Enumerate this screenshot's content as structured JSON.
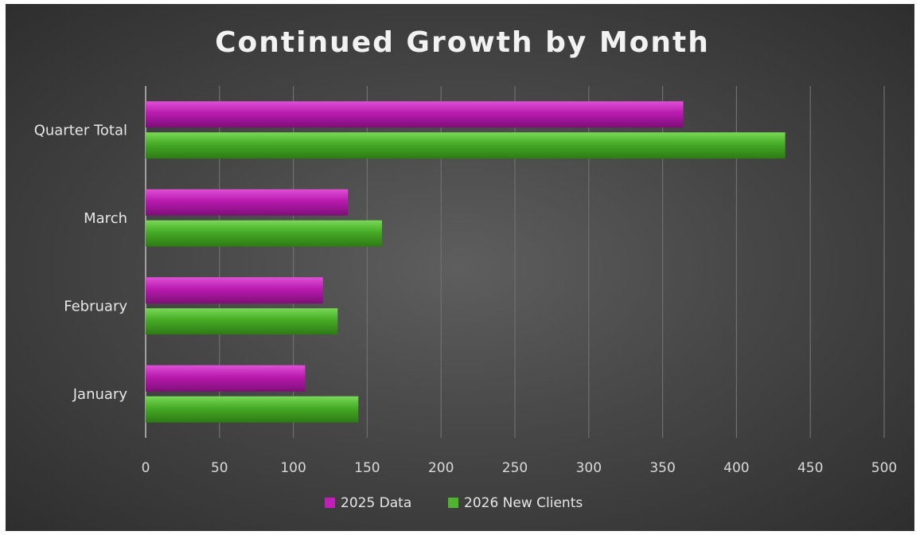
{
  "chart_data": {
    "type": "bar",
    "orientation": "horizontal",
    "title": "Continued Growth by Month",
    "categories": [
      "January",
      "February",
      "March",
      "Quarter Total"
    ],
    "series": [
      {
        "name": "2025 Data",
        "values": [
          108,
          120,
          137,
          364
        ],
        "color": "#c020b8"
      },
      {
        "name": "2026 New Clients",
        "values": [
          144,
          130,
          160,
          433
        ],
        "color": "#4fb52e"
      }
    ],
    "xlim": [
      0,
      500
    ],
    "xticks": [
      0,
      50,
      100,
      150,
      200,
      250,
      300,
      350,
      400,
      450,
      500
    ],
    "grid": "vertical",
    "legend": "bottom",
    "background": "#3a3a3a"
  }
}
